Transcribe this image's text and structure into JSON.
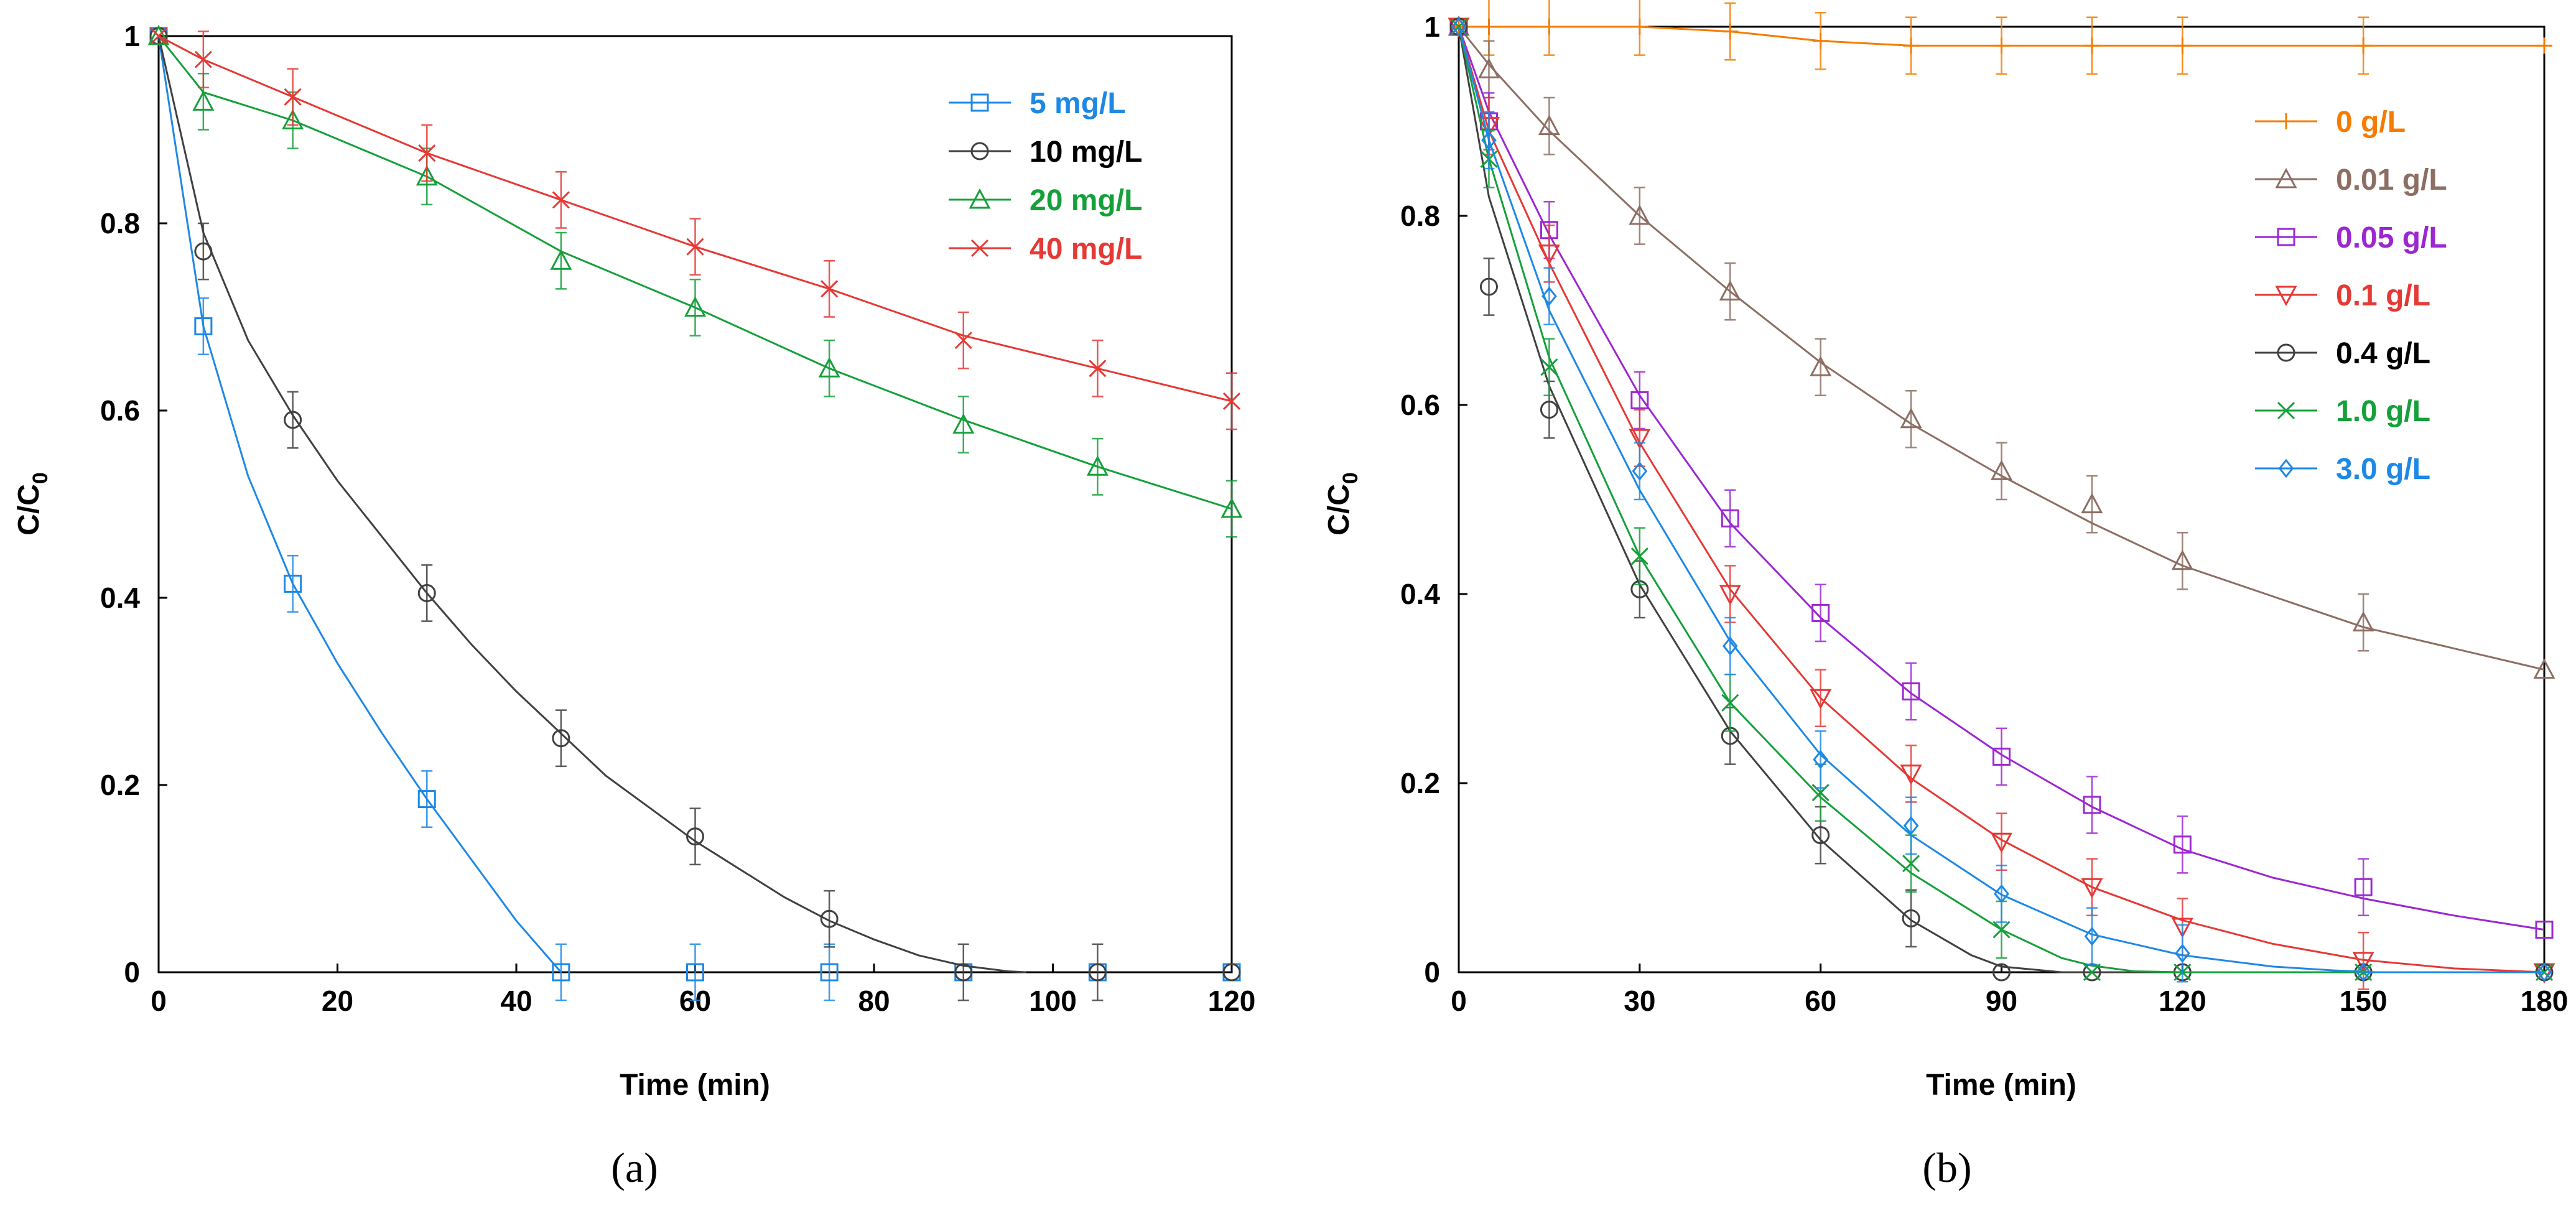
{
  "chart_data": [
    {
      "type": "line",
      "panel": "a",
      "caption": "(a)",
      "xlabel": "Time (min)",
      "ylabel_main": "C/C",
      "ylabel_sub": "0",
      "xlim": [
        0,
        120
      ],
      "ylim": [
        0,
        1
      ],
      "xticks": [
        0,
        20,
        40,
        60,
        80,
        100,
        120
      ],
      "yticks": [
        0,
        0.2,
        0.4,
        0.6,
        0.8,
        1
      ],
      "xtick_labels": [
        "0",
        "20",
        "40",
        "60",
        "80",
        "100",
        "120"
      ],
      "ytick_labels": [
        "0",
        "0.2",
        "0.4",
        "0.6",
        "0.8",
        "1"
      ],
      "legend_position": "top-right",
      "grid": false,
      "series": [
        {
          "name": "5 mg/L",
          "color": "#1E88E5",
          "marker": "square",
          "x": [
            0,
            5,
            15,
            30,
            45,
            60,
            75,
            90,
            105,
            120
          ],
          "y": [
            1,
            0.69,
            0.415,
            0.185,
            0,
            0,
            0,
            0,
            0,
            0
          ],
          "err": [
            0,
            0.03,
            0.03,
            0.03,
            0.03,
            0.03,
            0.03,
            0,
            0,
            0
          ],
          "fit_x": [
            0,
            5,
            10,
            15,
            20,
            25,
            30,
            35,
            40,
            45
          ],
          "fit_y": [
            1,
            0.69,
            0.53,
            0.415,
            0.33,
            0.255,
            0.185,
            0.12,
            0.055,
            0
          ]
        },
        {
          "name": "10 mg/L",
          "color": "#404040",
          "marker": "circle",
          "x": [
            0,
            5,
            15,
            30,
            45,
            60,
            75,
            90,
            105,
            120
          ],
          "y": [
            1,
            0.77,
            0.59,
            0.405,
            0.25,
            0.145,
            0.057,
            0,
            0,
            0
          ],
          "err": [
            0,
            0.03,
            0.03,
            0.03,
            0.03,
            0.03,
            0.03,
            0.03,
            0.03,
            0
          ],
          "fit_x": [
            0,
            5,
            10,
            15,
            20,
            25,
            30,
            35,
            40,
            45,
            50,
            55,
            60,
            65,
            70,
            75,
            80,
            85,
            90,
            95,
            97
          ],
          "fit_y": [
            1,
            0.79,
            0.675,
            0.595,
            0.525,
            0.465,
            0.405,
            0.35,
            0.3,
            0.255,
            0.21,
            0.175,
            0.14,
            0.11,
            0.08,
            0.055,
            0.035,
            0.018,
            0.007,
            0.001,
            0
          ]
        },
        {
          "name": "20 mg/L",
          "color": "#15A03A",
          "marker": "triangle",
          "x": [
            0,
            5,
            15,
            30,
            45,
            60,
            75,
            90,
            105,
            120
          ],
          "y": [
            1,
            0.93,
            0.91,
            0.85,
            0.76,
            0.71,
            0.645,
            0.585,
            0.54,
            0.495
          ],
          "err": [
            0,
            0.03,
            0.03,
            0.03,
            0.03,
            0.03,
            0.03,
            0.03,
            0.03,
            0.03
          ],
          "fit_x": [
            0,
            5,
            15,
            30,
            45,
            60,
            75,
            90,
            105,
            120
          ],
          "fit_y": [
            1,
            0.94,
            0.91,
            0.85,
            0.77,
            0.71,
            0.645,
            0.59,
            0.54,
            0.495
          ]
        },
        {
          "name": "40 mg/L",
          "color": "#E53935",
          "marker": "x",
          "x": [
            0,
            5,
            15,
            30,
            45,
            60,
            75,
            90,
            105,
            120
          ],
          "y": [
            1,
            0.975,
            0.935,
            0.875,
            0.825,
            0.775,
            0.73,
            0.675,
            0.645,
            0.61
          ],
          "err": [
            0,
            0.03,
            0.03,
            0.03,
            0.03,
            0.03,
            0.03,
            0.03,
            0.03,
            0.03
          ],
          "fit_x": [
            0,
            5,
            15,
            30,
            45,
            60,
            75,
            90,
            105,
            120
          ],
          "fit_y": [
            1,
            0.975,
            0.935,
            0.875,
            0.825,
            0.775,
            0.73,
            0.68,
            0.645,
            0.61
          ]
        }
      ]
    },
    {
      "type": "line",
      "panel": "b",
      "caption": "(b)",
      "xlabel": "Time (min)",
      "ylabel_main": "C/C",
      "ylabel_sub": "0",
      "xlim": [
        0,
        180
      ],
      "ylim": [
        0,
        1
      ],
      "xticks": [
        0,
        30,
        60,
        90,
        120,
        150,
        180
      ],
      "yticks": [
        0,
        0.2,
        0.4,
        0.6,
        0.8,
        1
      ],
      "xtick_labels": [
        "0",
        "30",
        "60",
        "90",
        "120",
        "150",
        "180"
      ],
      "ytick_labels": [
        "0",
        "0.2",
        "0.4",
        "0.6",
        "0.8",
        "1"
      ],
      "legend_position": "top-right",
      "grid": false,
      "series": [
        {
          "name": "0 g/L",
          "color": "#F57C00",
          "marker": "plus",
          "x": [
            0,
            5,
            15,
            30,
            45,
            60,
            75,
            90,
            105,
            120,
            150,
            180
          ],
          "y": [
            1,
            1,
            1,
            1,
            0.995,
            0.985,
            0.98,
            0.98,
            0.98,
            0.98,
            0.98,
            0.98
          ],
          "err": [
            0,
            0.03,
            0.03,
            0.03,
            0.03,
            0.03,
            0.03,
            0.03,
            0.03,
            0.03,
            0.03,
            0
          ],
          "fit_x": [
            0,
            30,
            45,
            60,
            75,
            90,
            180
          ],
          "fit_y": [
            1,
            1,
            0.995,
            0.985,
            0.98,
            0.98,
            0.98
          ]
        },
        {
          "name": "0.01 g/L",
          "color": "#8D6E63",
          "marker": "triangle",
          "x": [
            0,
            5,
            15,
            30,
            45,
            60,
            75,
            90,
            105,
            120,
            150,
            180
          ],
          "y": [
            1,
            0.955,
            0.895,
            0.8,
            0.72,
            0.64,
            0.585,
            0.53,
            0.495,
            0.435,
            0.37,
            0.32
          ],
          "err": [
            0,
            0.03,
            0.03,
            0.03,
            0.03,
            0.03,
            0.03,
            0.03,
            0.03,
            0.03,
            0.03,
            0
          ],
          "fit_x": [
            0,
            5,
            15,
            30,
            45,
            60,
            75,
            90,
            105,
            120,
            150,
            180
          ],
          "fit_y": [
            1,
            0.96,
            0.89,
            0.8,
            0.72,
            0.645,
            0.58,
            0.525,
            0.475,
            0.43,
            0.365,
            0.32
          ]
        },
        {
          "name": "0.05 g/L",
          "color": "#9C27D0",
          "marker": "square",
          "x": [
            0,
            5,
            15,
            30,
            45,
            60,
            75,
            90,
            105,
            120,
            150,
            180
          ],
          "y": [
            1,
            0.9,
            0.785,
            0.605,
            0.48,
            0.38,
            0.297,
            0.228,
            0.177,
            0.135,
            0.09,
            0.045
          ],
          "err": [
            0,
            0.03,
            0.03,
            0.03,
            0.03,
            0.03,
            0.03,
            0.03,
            0.03,
            0.03,
            0.03,
            0
          ],
          "fit_x": [
            0,
            5,
            15,
            30,
            45,
            60,
            75,
            90,
            105,
            120,
            135,
            150,
            165,
            180
          ],
          "fit_y": [
            1,
            0.91,
            0.78,
            0.61,
            0.475,
            0.375,
            0.295,
            0.23,
            0.175,
            0.13,
            0.1,
            0.078,
            0.06,
            0.045
          ]
        },
        {
          "name": "0.1 g/L",
          "color": "#E53935",
          "marker": "triangle-down",
          "x": [
            0,
            5,
            15,
            30,
            45,
            60,
            75,
            90,
            105,
            120,
            150,
            180
          ],
          "y": [
            1,
            0.895,
            0.76,
            0.565,
            0.4,
            0.29,
            0.21,
            0.138,
            0.09,
            0.048,
            0.012,
            0
          ],
          "err": [
            0,
            0.03,
            0.03,
            0.03,
            0.03,
            0.03,
            0.03,
            0.03,
            0.03,
            0.03,
            0.03,
            0
          ],
          "fit_x": [
            0,
            5,
            15,
            30,
            45,
            60,
            75,
            90,
            105,
            120,
            135,
            150,
            165,
            180
          ],
          "fit_y": [
            1,
            0.89,
            0.75,
            0.56,
            0.405,
            0.29,
            0.205,
            0.14,
            0.09,
            0.055,
            0.03,
            0.013,
            0.004,
            0
          ]
        },
        {
          "name": "0.4 g/L",
          "color": "#404040",
          "marker": "circle",
          "x": [
            0,
            5,
            15,
            30,
            45,
            60,
            75,
            90,
            105,
            120,
            150,
            180
          ],
          "y": [
            1,
            0.725,
            0.595,
            0.405,
            0.25,
            0.145,
            0.057,
            0,
            0,
            0,
            0,
            0
          ],
          "err": [
            0,
            0.03,
            0.03,
            0.03,
            0.03,
            0.03,
            0.03,
            0,
            0,
            0,
            0,
            0
          ],
          "fit_x": [
            0,
            5,
            15,
            30,
            45,
            60,
            75,
            85,
            90,
            100,
            105,
            120,
            180
          ],
          "fit_y": [
            1,
            0.82,
            0.62,
            0.41,
            0.255,
            0.14,
            0.055,
            0.018,
            0.006,
            0,
            0,
            0,
            0
          ]
        },
        {
          "name": "1.0 g/L",
          "color": "#15A03A",
          "marker": "x",
          "x": [
            0,
            5,
            15,
            30,
            45,
            60,
            75,
            90,
            105,
            120,
            150,
            180
          ],
          "y": [
            1,
            0.86,
            0.64,
            0.44,
            0.285,
            0.19,
            0.115,
            0.045,
            0,
            0,
            0,
            0
          ],
          "err": [
            0,
            0.03,
            0.03,
            0.03,
            0.03,
            0.03,
            0.03,
            0.03,
            0,
            0,
            0,
            0
          ],
          "fit_x": [
            0,
            5,
            15,
            30,
            45,
            60,
            75,
            90,
            100,
            105,
            112,
            120,
            180
          ],
          "fit_y": [
            1,
            0.86,
            0.65,
            0.44,
            0.285,
            0.185,
            0.105,
            0.045,
            0.015,
            0.007,
            0.001,
            0,
            0
          ]
        },
        {
          "name": "3.0 g/L",
          "color": "#1E88E5",
          "marker": "diamond",
          "x": [
            0,
            5,
            15,
            30,
            45,
            60,
            75,
            90,
            105,
            120,
            150,
            180
          ],
          "y": [
            1,
            0.88,
            0.715,
            0.53,
            0.345,
            0.225,
            0.155,
            0.083,
            0.038,
            0.02,
            0,
            0
          ],
          "err": [
            0,
            0.03,
            0.03,
            0.03,
            0.03,
            0.03,
            0.03,
            0.03,
            0.03,
            0.03,
            0,
            0
          ],
          "fit_x": [
            0,
            5,
            15,
            30,
            45,
            60,
            75,
            90,
            105,
            120,
            135,
            145,
            152,
            180
          ],
          "fit_y": [
            1,
            0.88,
            0.7,
            0.51,
            0.35,
            0.23,
            0.145,
            0.082,
            0.04,
            0.018,
            0.006,
            0.002,
            0,
            0
          ]
        }
      ]
    }
  ]
}
